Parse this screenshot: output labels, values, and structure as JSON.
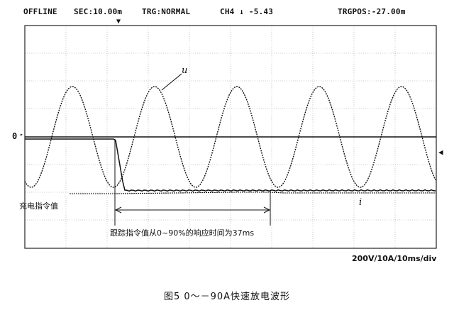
{
  "status_bar": {
    "mode": "OFFLINE",
    "sec": "SEC:10.00m",
    "trigger": "TRG:NORMAL",
    "channel": "CH4 ↓ -5.43",
    "trigger_pos": "TRGPOS:-27.00m"
  },
  "markers": {
    "trigger_arrow": "▼",
    "zero_label": "0",
    "right_arrow": "◀"
  },
  "labels": {
    "u": "u",
    "i": "i",
    "charge_command": "充电指令值",
    "response_note": "跟踪指令值从0~90%的响应时间为37ms",
    "scale": "200V/10A/10ms/div"
  },
  "caption": "图5   0～－90A快速放电波形",
  "colors": {
    "trace": "#111111",
    "grid": "#bdbdbd",
    "frame": "#222222"
  }
}
